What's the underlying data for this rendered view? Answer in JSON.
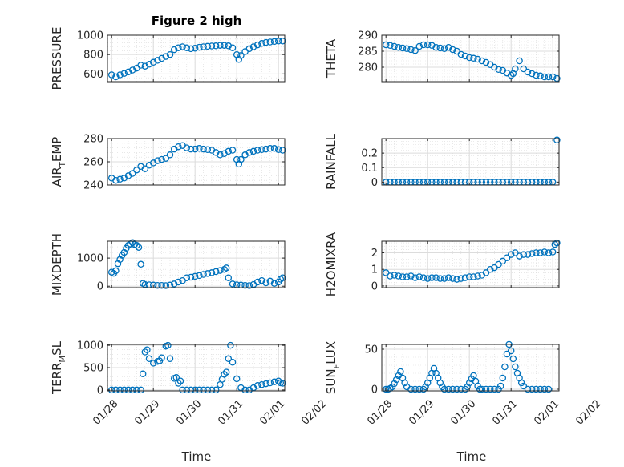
{
  "figure": {
    "title": "Figure 2 high",
    "xlabel": "Time",
    "marker_color": "#0072BD",
    "grid": "major-and-minor dotted"
  },
  "chart_data": [
    {
      "type": "scatter",
      "ylabel_main": "PRESSURE",
      "ylabel_sub": "",
      "x_ticks": [
        "01/28",
        "01/29",
        "01/30",
        "01/31",
        "02/01",
        "02/02"
      ],
      "show_x_ticks": false,
      "xlim": [
        -0.1,
        4.15
      ],
      "ylim": [
        520,
        1000
      ],
      "yticks": [
        600,
        800,
        1000
      ],
      "x": [
        0.0,
        0.1,
        0.2,
        0.3,
        0.4,
        0.5,
        0.6,
        0.7,
        0.8,
        0.9,
        1.0,
        1.1,
        1.2,
        1.3,
        1.4,
        1.5,
        1.6,
        1.7,
        1.8,
        1.9,
        2.0,
        2.1,
        2.2,
        2.3,
        2.4,
        2.5,
        2.6,
        2.7,
        2.8,
        2.9,
        3.0,
        3.05,
        3.1,
        3.2,
        3.3,
        3.4,
        3.5,
        3.6,
        3.7,
        3.8,
        3.9,
        4.0,
        4.1
      ],
      "y": [
        590,
        570,
        590,
        605,
        620,
        640,
        660,
        690,
        680,
        700,
        720,
        740,
        760,
        780,
        800,
        850,
        870,
        880,
        870,
        860,
        865,
        875,
        880,
        885,
        888,
        890,
        895,
        895,
        890,
        870,
        800,
        750,
        790,
        830,
        860,
        880,
        900,
        915,
        925,
        930,
        935,
        940,
        940
      ]
    },
    {
      "type": "scatter",
      "ylabel_main": "THETA",
      "ylabel_sub": "",
      "x_ticks": [
        "01/28",
        "01/29",
        "01/30",
        "01/31",
        "02/01",
        "02/02"
      ],
      "show_x_ticks": false,
      "xlim": [
        -0.1,
        4.15
      ],
      "ylim": [
        275.5,
        290
      ],
      "yticks": [
        280,
        285,
        290
      ],
      "x": [
        0.0,
        0.1,
        0.2,
        0.3,
        0.4,
        0.5,
        0.6,
        0.7,
        0.8,
        0.9,
        1.0,
        1.1,
        1.2,
        1.3,
        1.4,
        1.5,
        1.6,
        1.7,
        1.8,
        1.9,
        2.0,
        2.1,
        2.2,
        2.3,
        2.4,
        2.5,
        2.6,
        2.7,
        2.8,
        2.9,
        3.0,
        3.05,
        3.1,
        3.2,
        3.3,
        3.4,
        3.5,
        3.6,
        3.7,
        3.8,
        3.9,
        4.0,
        4.1
      ],
      "y": [
        287,
        286.8,
        286.5,
        286.2,
        286,
        285.8,
        285.5,
        285.2,
        286.5,
        287,
        287,
        286.8,
        286.2,
        286,
        285.8,
        286.2,
        285.5,
        285,
        284,
        283.5,
        283,
        282.8,
        282.5,
        282,
        281.5,
        280.8,
        280,
        279.3,
        279,
        278.2,
        277.5,
        278,
        279.5,
        282,
        279.5,
        278.5,
        278,
        277.5,
        277.3,
        277,
        277,
        277,
        276.5
      ]
    },
    {
      "type": "scatter",
      "ylabel_main": "AIR",
      "ylabel_sub": "T",
      "ylabel_tail": "EMP",
      "x_ticks": [
        "01/28",
        "01/29",
        "01/30",
        "01/31",
        "02/01",
        "02/02"
      ],
      "show_x_ticks": false,
      "xlim": [
        -0.1,
        4.15
      ],
      "ylim": [
        240,
        280
      ],
      "yticks": [
        240,
        260,
        280
      ],
      "x": [
        0.0,
        0.1,
        0.2,
        0.3,
        0.4,
        0.5,
        0.6,
        0.7,
        0.8,
        0.9,
        1.0,
        1.1,
        1.2,
        1.3,
        1.4,
        1.5,
        1.6,
        1.7,
        1.8,
        1.9,
        2.0,
        2.1,
        2.2,
        2.3,
        2.4,
        2.5,
        2.6,
        2.7,
        2.8,
        2.9,
        3.0,
        3.05,
        3.1,
        3.2,
        3.3,
        3.4,
        3.5,
        3.6,
        3.7,
        3.8,
        3.9,
        4.0,
        4.1
      ],
      "y": [
        246,
        244,
        245,
        246,
        248,
        250,
        253,
        256,
        254,
        257,
        259,
        261,
        262,
        263,
        266,
        271,
        273,
        274,
        272,
        271,
        271,
        271.5,
        271,
        270.5,
        270,
        268,
        266,
        267,
        269,
        270,
        262,
        258,
        262,
        266,
        268,
        269,
        270,
        270.5,
        271,
        271.5,
        271.5,
        270.5,
        270
      ]
    },
    {
      "type": "scatter",
      "ylabel_main": "RAINFALL",
      "ylabel_sub": "",
      "x_ticks": [
        "01/28",
        "01/29",
        "01/30",
        "01/31",
        "02/01",
        "02/02"
      ],
      "show_x_ticks": false,
      "xlim": [
        -0.1,
        4.15
      ],
      "ylim": [
        -0.02,
        0.3
      ],
      "yticks": [
        0,
        0.1,
        0.2
      ],
      "x": [
        0.0,
        0.1,
        0.2,
        0.3,
        0.4,
        0.5,
        0.6,
        0.7,
        0.8,
        0.9,
        1.0,
        1.1,
        1.2,
        1.3,
        1.4,
        1.5,
        1.6,
        1.7,
        1.8,
        1.9,
        2.0,
        2.1,
        2.2,
        2.3,
        2.4,
        2.5,
        2.6,
        2.7,
        2.8,
        2.9,
        3.0,
        3.1,
        3.2,
        3.3,
        3.4,
        3.5,
        3.6,
        3.7,
        3.8,
        3.9,
        4.0,
        4.1
      ],
      "y": [
        0,
        0,
        0,
        0,
        0,
        0,
        0,
        0,
        0,
        0,
        0,
        0,
        0,
        0,
        0,
        0,
        0,
        0,
        0,
        0,
        0,
        0,
        0,
        0,
        0,
        0,
        0,
        0,
        0,
        0,
        0,
        0,
        0,
        0,
        0,
        0,
        0,
        0,
        0,
        0,
        0,
        0.29
      ]
    },
    {
      "type": "scatter",
      "ylabel_main": "MIXDEPTH",
      "ylabel_sub": "",
      "x_ticks": [
        "01/28",
        "01/29",
        "01/30",
        "01/31",
        "02/01",
        "02/02"
      ],
      "show_x_ticks": false,
      "xlim": [
        -0.1,
        4.15
      ],
      "ylim": [
        -50,
        1600
      ],
      "yticks": [
        0,
        1000
      ],
      "x": [
        0.0,
        0.05,
        0.1,
        0.15,
        0.2,
        0.25,
        0.3,
        0.35,
        0.4,
        0.45,
        0.5,
        0.55,
        0.6,
        0.65,
        0.7,
        0.75,
        0.8,
        0.9,
        1.0,
        1.1,
        1.2,
        1.3,
        1.4,
        1.5,
        1.6,
        1.7,
        1.8,
        1.9,
        2.0,
        2.1,
        2.2,
        2.3,
        2.4,
        2.5,
        2.6,
        2.7,
        2.75,
        2.8,
        2.9,
        3.0,
        3.1,
        3.2,
        3.3,
        3.4,
        3.5,
        3.6,
        3.7,
        3.8,
        3.9,
        4.0,
        4.05,
        4.1
      ],
      "y": [
        500,
        460,
        550,
        800,
        950,
        1100,
        1200,
        1350,
        1450,
        1500,
        1550,
        1480,
        1450,
        1380,
        780,
        100,
        60,
        50,
        40,
        30,
        30,
        20,
        40,
        80,
        150,
        200,
        300,
        320,
        350,
        380,
        420,
        450,
        480,
        520,
        560,
        600,
        650,
        300,
        80,
        50,
        40,
        30,
        20,
        60,
        150,
        200,
        120,
        180,
        100,
        150,
        250,
        300
      ]
    },
    {
      "type": "scatter",
      "ylabel_main": "H2OMIXRA",
      "ylabel_sub": "",
      "x_ticks": [
        "01/28",
        "01/29",
        "01/30",
        "01/31",
        "02/01",
        "02/02"
      ],
      "show_x_ticks": false,
      "xlim": [
        -0.1,
        4.15
      ],
      "ylim": [
        -0.1,
        2.7
      ],
      "yticks": [
        0,
        1,
        2
      ],
      "x": [
        0.0,
        0.1,
        0.2,
        0.3,
        0.4,
        0.5,
        0.6,
        0.7,
        0.8,
        0.9,
        1.0,
        1.1,
        1.2,
        1.3,
        1.4,
        1.5,
        1.6,
        1.7,
        1.8,
        1.9,
        2.0,
        2.1,
        2.2,
        2.3,
        2.4,
        2.5,
        2.6,
        2.7,
        2.8,
        2.9,
        3.0,
        3.1,
        3.2,
        3.3,
        3.4,
        3.5,
        3.6,
        3.7,
        3.8,
        3.9,
        4.0,
        4.05,
        4.1
      ],
      "y": [
        0.8,
        0.6,
        0.65,
        0.6,
        0.55,
        0.55,
        0.6,
        0.5,
        0.55,
        0.5,
        0.45,
        0.5,
        0.5,
        0.45,
        0.45,
        0.5,
        0.45,
        0.4,
        0.45,
        0.5,
        0.55,
        0.55,
        0.6,
        0.65,
        0.8,
        1.0,
        1.1,
        1.3,
        1.5,
        1.7,
        1.9,
        2.0,
        1.8,
        1.9,
        1.9,
        1.95,
        2.0,
        2.0,
        2.05,
        2.0,
        2.05,
        2.5,
        2.6
      ]
    },
    {
      "type": "scatter",
      "ylabel_main": "TERR",
      "ylabel_sub": "M",
      "ylabel_tail": "SL",
      "x_ticks": [
        "01/28",
        "01/29",
        "01/30",
        "01/31",
        "02/01",
        "02/02"
      ],
      "show_x_ticks": true,
      "xlim": [
        -0.1,
        4.15
      ],
      "ylim": [
        -20,
        1020
      ],
      "yticks": [
        0,
        500,
        1000
      ],
      "x": [
        0.0,
        0.1,
        0.2,
        0.3,
        0.4,
        0.5,
        0.6,
        0.7,
        0.75,
        0.8,
        0.85,
        0.9,
        1.0,
        1.1,
        1.15,
        1.2,
        1.3,
        1.35,
        1.4,
        1.5,
        1.55,
        1.6,
        1.65,
        1.7,
        1.8,
        1.9,
        2.0,
        2.1,
        2.2,
        2.3,
        2.4,
        2.5,
        2.6,
        2.65,
        2.7,
        2.75,
        2.8,
        2.85,
        2.9,
        3.0,
        3.1,
        3.2,
        3.3,
        3.4,
        3.5,
        3.6,
        3.7,
        3.8,
        3.9,
        4.0,
        4.05,
        4.1
      ],
      "y": [
        0,
        0,
        0,
        0,
        0,
        0,
        0,
        0,
        360,
        850,
        900,
        700,
        600,
        640,
        650,
        720,
        980,
        1000,
        700,
        260,
        280,
        150,
        200,
        0,
        0,
        0,
        0,
        0,
        0,
        0,
        0,
        0,
        120,
        240,
        350,
        400,
        700,
        1000,
        620,
        250,
        50,
        0,
        0,
        50,
        100,
        120,
        140,
        160,
        180,
        200,
        160,
        150
      ]
    },
    {
      "type": "scatter",
      "ylabel_main": "SUN",
      "ylabel_sub": "F",
      "ylabel_tail": "LUX",
      "x_ticks": [
        "01/28",
        "01/29",
        "01/30",
        "01/31",
        "02/01",
        "02/02"
      ],
      "show_x_ticks": true,
      "xlim": [
        -0.1,
        4.15
      ],
      "ylim": [
        -2,
        56
      ],
      "yticks": [
        0,
        50
      ],
      "x": [
        0.0,
        0.05,
        0.1,
        0.15,
        0.2,
        0.25,
        0.3,
        0.35,
        0.4,
        0.45,
        0.5,
        0.6,
        0.7,
        0.8,
        0.9,
        0.95,
        1.0,
        1.05,
        1.1,
        1.15,
        1.2,
        1.25,
        1.3,
        1.35,
        1.4,
        1.5,
        1.6,
        1.7,
        1.8,
        1.9,
        1.95,
        2.0,
        2.05,
        2.1,
        2.15,
        2.2,
        2.25,
        2.3,
        2.4,
        2.5,
        2.6,
        2.7,
        2.75,
        2.8,
        2.85,
        2.9,
        2.95,
        3.0,
        3.05,
        3.1,
        3.15,
        3.2,
        3.25,
        3.3,
        3.4,
        3.5,
        3.6,
        3.7,
        3.8,
        3.9
      ],
      "y": [
        0,
        0,
        1,
        3,
        7,
        12,
        17,
        22,
        14,
        8,
        3,
        0,
        0,
        0,
        0,
        3,
        8,
        14,
        20,
        26,
        20,
        14,
        8,
        3,
        0,
        0,
        0,
        0,
        0,
        0,
        3,
        8,
        13,
        17,
        10,
        4,
        0,
        0,
        0,
        0,
        0,
        0,
        4,
        14,
        28,
        44,
        56,
        48,
        38,
        28,
        20,
        14,
        8,
        4,
        0,
        0,
        0,
        0,
        0,
        0
      ]
    }
  ]
}
